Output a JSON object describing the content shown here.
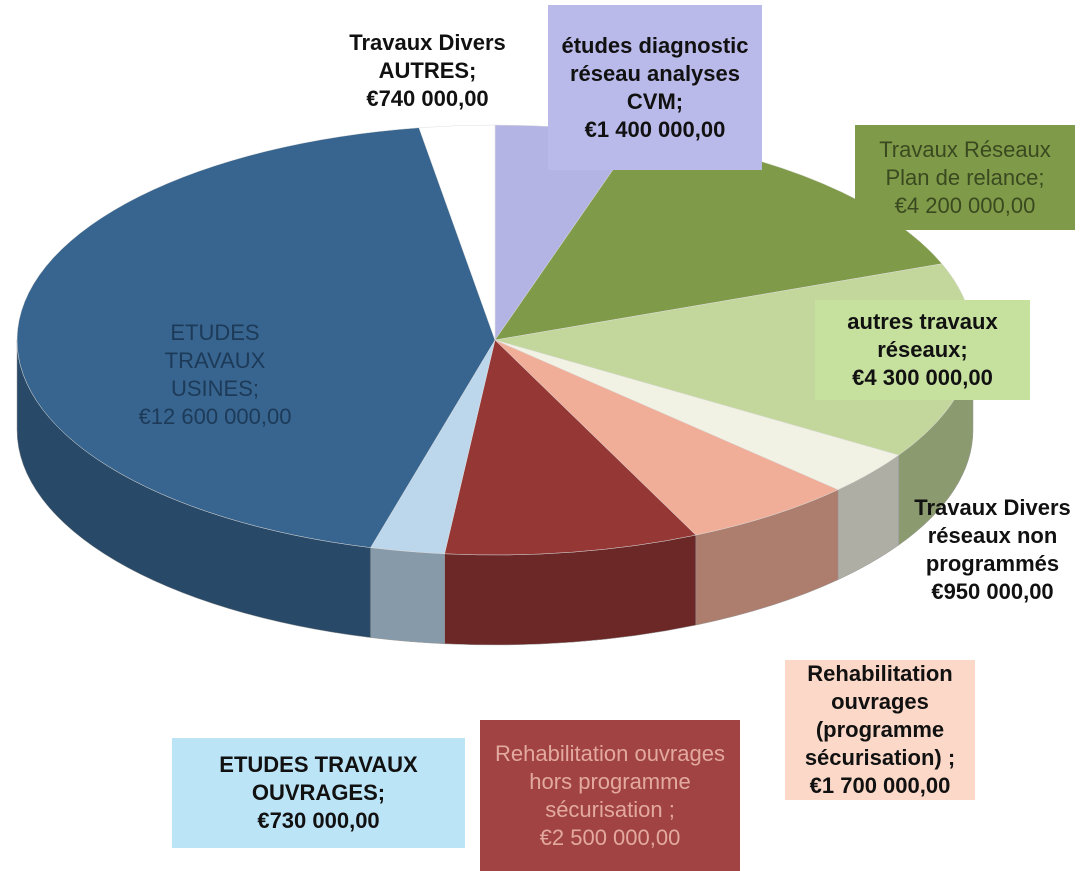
{
  "chart_data": {
    "type": "pie3d",
    "categories": [
      "études diagnostic réseau analyses CVM;",
      "Travaux Réseaux Plan de relance;",
      "autres travaux réseaux;",
      "Travaux Divers réseaux non programmés",
      "Rehabilitation ouvrages (programme sécurisation) ;",
      "Rehabilitation ouvrages hors programme sécurisation ;",
      "ETUDES TRAVAUX OUVRAGES;",
      "ETUDES TRAVAUX USINES;",
      "Travaux Divers AUTRES;"
    ],
    "values": [
      1400000,
      4200000,
      4300000,
      950000,
      1700000,
      2500000,
      730000,
      12600000,
      740000
    ],
    "value_labels": [
      "€1 400 000,00",
      "€4 200 000,00",
      "€4 300 000,00",
      "€950 000,00",
      "€1 700 000,00",
      "€2 500 000,00",
      "€730 000,00",
      "€12 600 000,00",
      "€740 000,00"
    ],
    "colors": [
      "#b4b4e4",
      "#7f9a48",
      "#c3d69b",
      "#f2f2e4",
      "#f0ae98",
      "#953735",
      "#bcd6ec",
      "#37658f",
      "#ffffff"
    ]
  }
}
